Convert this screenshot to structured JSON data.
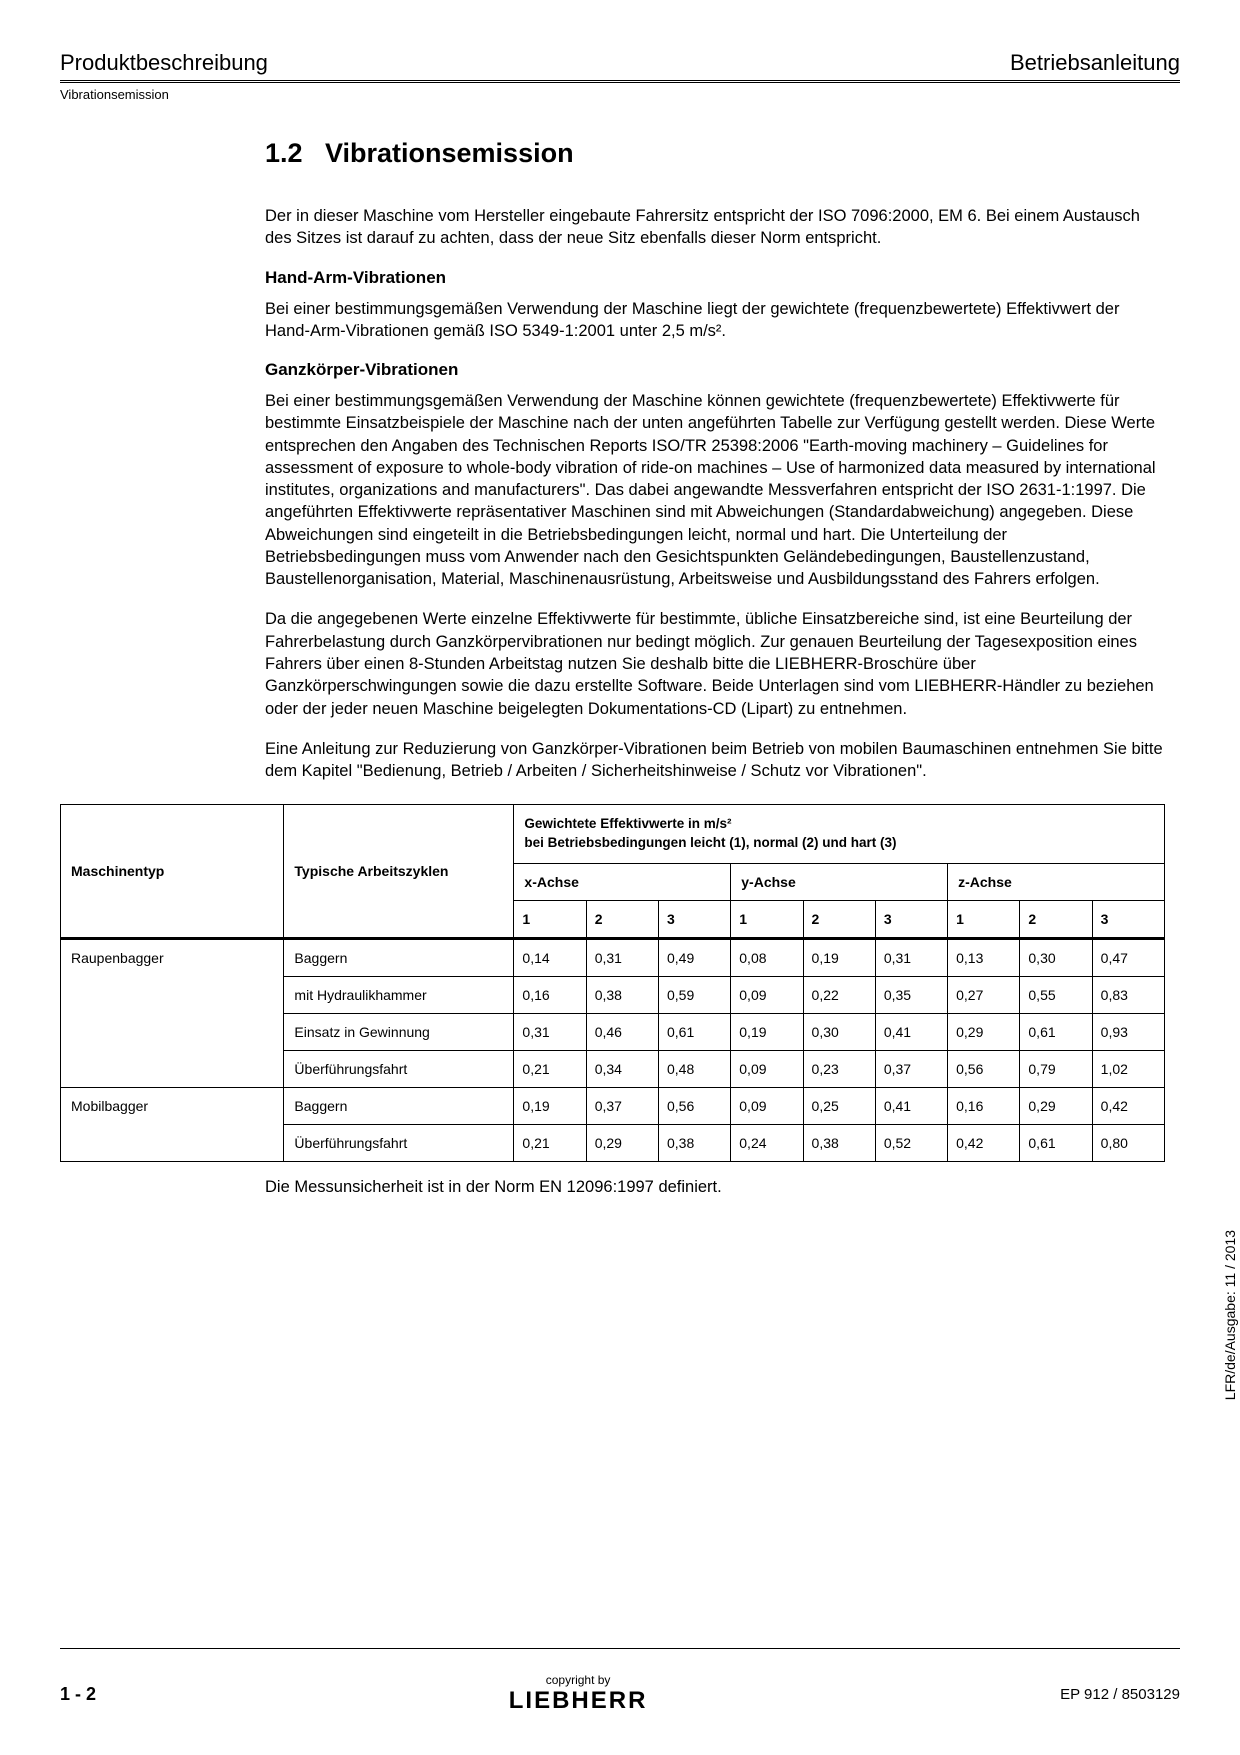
{
  "header": {
    "left": "Produktbeschreibung",
    "right": "Betriebsanleitung",
    "sub": "Vibrationsemission"
  },
  "section": {
    "number": "1.2",
    "title": "Vibrationsemission",
    "intro": "Der in dieser Maschine vom Hersteller eingebaute Fahrersitz entspricht der ISO 7096:2000, EM 6. Bei einem Austausch des Sitzes ist darauf zu achten, dass der neue Sitz ebenfalls dieser Norm entspricht.",
    "handarm_heading": "Hand-Arm-Vibrationen",
    "handarm_text": "Bei einer bestimmungsgemäßen Verwendung der Maschine liegt der gewichtete (frequenzbewertete) Effektivwert der Hand-Arm-Vibrationen gemäß ISO 5349-1:2001 unter 2,5 m/s².",
    "ganz_heading": "Ganzkörper-Vibrationen",
    "ganz_p1": "Bei einer bestimmungsgemäßen Verwendung der Maschine können gewichtete (frequenzbewertete) Effektivwerte für bestimmte Einsatzbeispiele der Maschine nach der unten angeführten Tabelle zur Verfügung gestellt werden. Diese Werte entsprechen den Angaben des Technischen Reports ISO/TR 25398:2006 \"Earth-moving machinery – Guidelines for assessment of exposure to whole-body vibration of ride-on machines – Use of harmonized data measured by international institutes, organizations and manufacturers\". Das dabei angewandte Messverfahren entspricht der ISO 2631-1:1997. Die angeführten Effektivwerte repräsentativer Maschinen sind mit Abweichungen (Standardabweichung) angegeben. Diese Abweichungen sind eingeteilt in die Betriebsbedingungen leicht, normal und hart. Die Unterteilung der Betriebsbedingungen muss vom Anwender nach den Gesichtspunkten Geländebedingungen, Baustellenzustand, Baustellenorganisation, Material, Maschinenausrüstung, Arbeitsweise und Ausbildungsstand des Fahrers erfolgen.",
    "ganz_p2": "Da die angegebenen Werte einzelne Effektivwerte für bestimmte, übliche Einsatzbereiche sind, ist eine Beurteilung der Fahrerbelastung durch Ganzkörpervibrationen nur bedingt möglich. Zur genauen Beurteilung der Tagesexposition eines Fahrers über einen 8-Stunden Arbeitstag nutzen Sie deshalb bitte die LIEBHERR-Broschüre über Ganzkörperschwingungen sowie die dazu erstellte Software. Beide Unterlagen sind vom LIEBHERR-Händler zu beziehen oder der jeder neuen Maschine beigelegten Dokumentations-CD (Lipart) zu entnehmen.",
    "ganz_p3": "Eine Anleitung zur Reduzierung von Ganzkörper-Vibrationen beim Betrieb von mobilen Baumaschinen entnehmen Sie bitte dem Kapitel \"Bedienung, Betrieb / Arbeiten / Sicherheitshinweise / Schutz vor Vibrationen\"."
  },
  "table": {
    "col_machine": "Maschinentyp",
    "col_cycle": "Typische Arbeitszyklen",
    "effekt_line1": "Gewichtete Effektivwerte in m/s²",
    "effekt_line2": "bei Betriebsbedingungen leicht (1), normal (2) und hart (3)",
    "x_axis": "x-Achse",
    "y_axis": "y-Achse",
    "z_axis": "z-Achse",
    "n1": "1",
    "n2": "2",
    "n3": "3",
    "rows": [
      {
        "m": "Raupenbagger",
        "c": "Baggern",
        "v": [
          "0,14",
          "0,31",
          "0,49",
          "0,08",
          "0,19",
          "0,31",
          "0,13",
          "0,30",
          "0,47"
        ]
      },
      {
        "m": "",
        "c": "mit Hydraulikhammer",
        "v": [
          "0,16",
          "0,38",
          "0,59",
          "0,09",
          "0,22",
          "0,35",
          "0,27",
          "0,55",
          "0,83"
        ]
      },
      {
        "m": "",
        "c": "Einsatz in Gewinnung",
        "v": [
          "0,31",
          "0,46",
          "0,61",
          "0,19",
          "0,30",
          "0,41",
          "0,29",
          "0,61",
          "0,93"
        ]
      },
      {
        "m": "",
        "c": "Überführungsfahrt",
        "v": [
          "0,21",
          "0,34",
          "0,48",
          "0,09",
          "0,23",
          "0,37",
          "0,56",
          "0,79",
          "1,02"
        ]
      },
      {
        "m": "Mobilbagger",
        "c": "Baggern",
        "v": [
          "0,19",
          "0,37",
          "0,56",
          "0,09",
          "0,25",
          "0,41",
          "0,16",
          "0,29",
          "0,42"
        ]
      },
      {
        "m": "",
        "c": "Überführungsfahrt",
        "v": [
          "0,21",
          "0,29",
          "0,38",
          "0,24",
          "0,38",
          "0,52",
          "0,42",
          "0,61",
          "0,80"
        ]
      }
    ]
  },
  "note": "Die Messunsicherheit ist in der Norm EN 12096:1997 definiert.",
  "footer": {
    "page": "1 - 2",
    "copyright": "copyright by",
    "logo": "LIEBHERR",
    "doc": "EP 912 / 8503129"
  },
  "side": "LFR/de/Ausgabe: 11 / 2013"
}
